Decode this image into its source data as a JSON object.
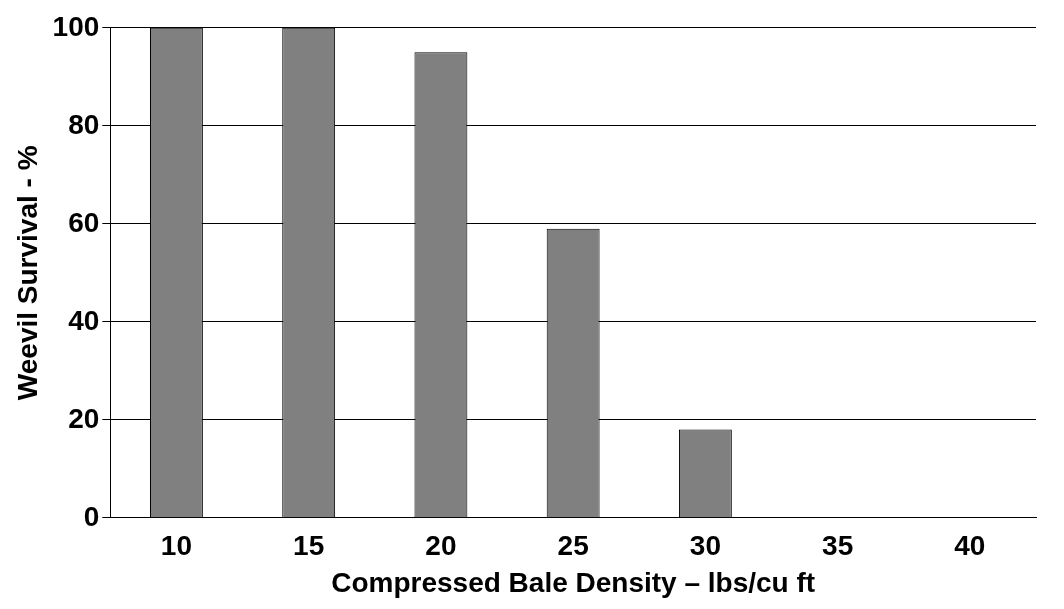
{
  "chart_data": {
    "type": "bar",
    "xlabel": "Compressed Bale Density – lbs/cu ft",
    "ylabel": "Weevil Survival - %",
    "categories": [
      "10",
      "15",
      "20",
      "25",
      "30",
      "35",
      "40"
    ],
    "values": [
      100,
      100,
      95,
      59,
      18,
      0,
      0
    ],
    "color": "#808080",
    "ylim": [
      0,
      100
    ],
    "yticks": [
      0,
      20,
      40,
      60,
      80,
      100
    ],
    "grid": "y",
    "legend": false
  }
}
